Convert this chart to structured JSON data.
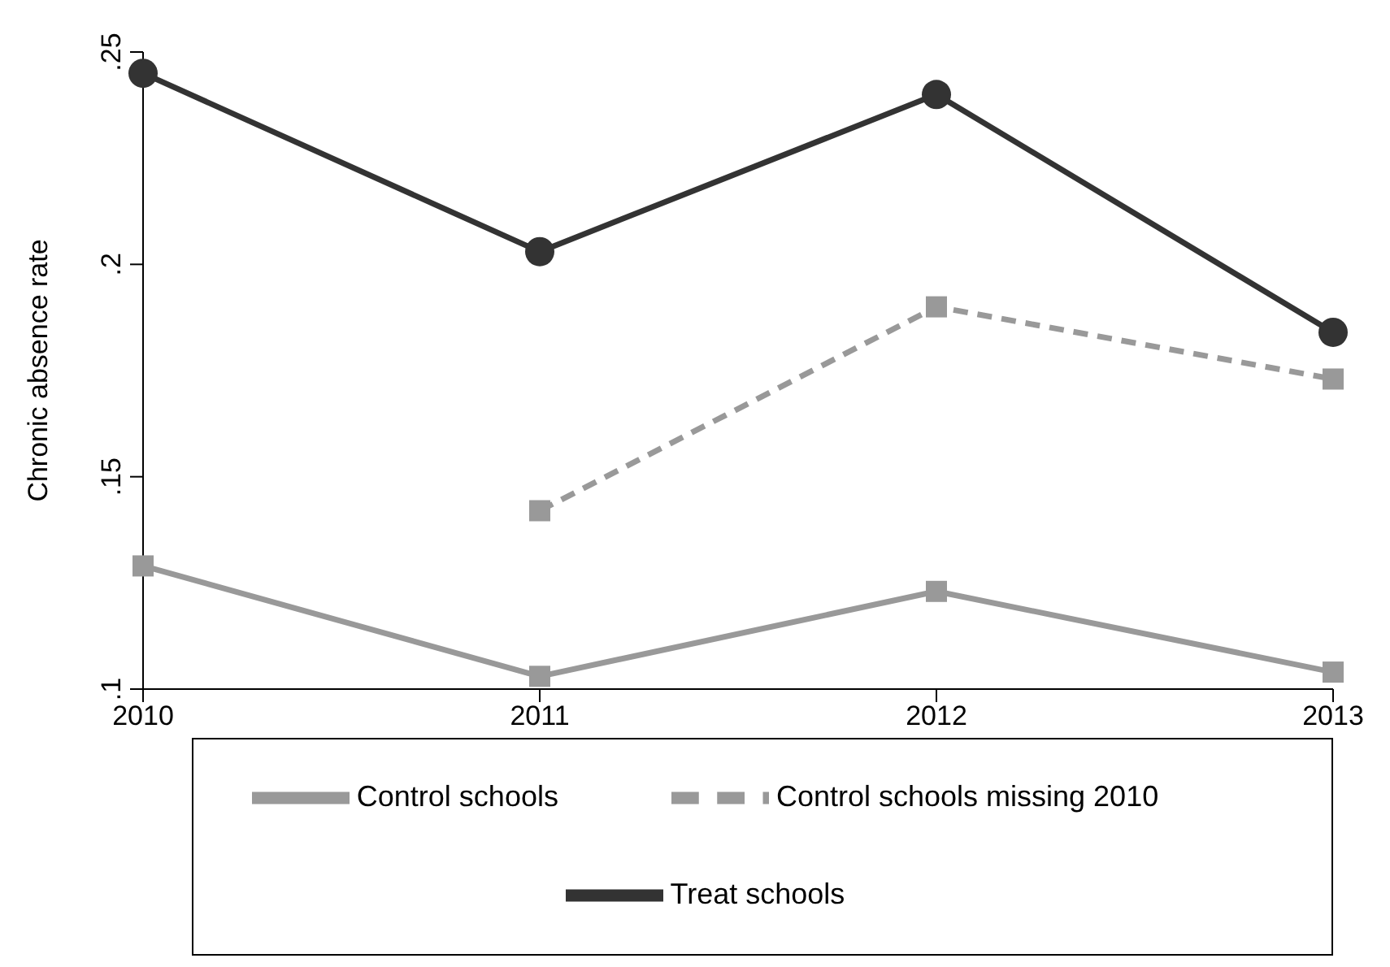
{
  "chart_data": {
    "type": "line",
    "ylabel": "Chronic absence rate",
    "x": [
      2010,
      2011,
      2012,
      2013
    ],
    "xlim": [
      2010,
      2013
    ],
    "xticks": [
      2010,
      2011,
      2012,
      2013
    ],
    "ylim": [
      0.1,
      0.25
    ],
    "yticks": [
      {
        "value": 0.1,
        "label": ".1"
      },
      {
        "value": 0.15,
        "label": ".15"
      },
      {
        "value": 0.2,
        "label": ".2"
      },
      {
        "value": 0.25,
        "label": ".25"
      }
    ],
    "grid": false,
    "legend": "bottom",
    "series": [
      {
        "name": "Treat schools",
        "color": "#333333",
        "marker": "circle",
        "line_style": "solid",
        "values": [
          0.245,
          0.203,
          0.24,
          0.184
        ]
      },
      {
        "name": "Control schools",
        "color": "#999999",
        "marker": "square",
        "line_style": "solid",
        "values": [
          0.129,
          0.103,
          0.123,
          0.104
        ]
      },
      {
        "name": "Control schools missing 2010",
        "color": "#999999",
        "marker": "square",
        "line_style": "dashed",
        "values": [
          null,
          0.142,
          0.19,
          0.173
        ]
      }
    ]
  }
}
